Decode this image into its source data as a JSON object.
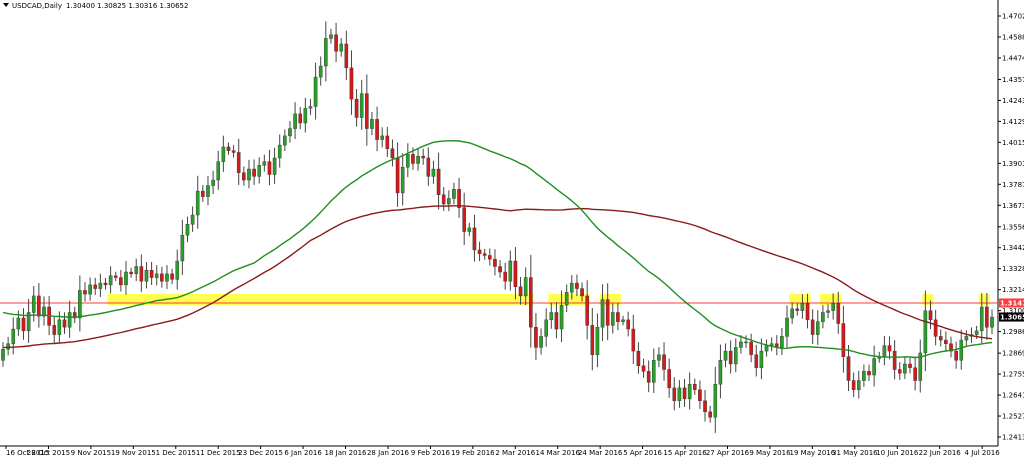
{
  "header": {
    "symbol": "USDCAD,Daily",
    "ohlc": "1.30400 1.30825 1.30316 1.30652"
  },
  "colors": {
    "up": "#2a9d2a",
    "down": "#d11a1a",
    "wick": "#444444",
    "ma_fast": "#1f8f1f",
    "ma_slow": "#8b1a1a",
    "resistance": "#ff3b3b",
    "highlight": "#ffff33",
    "tag_resistance": "#ff3b3b",
    "tag_current": "#000000",
    "axis": "#000000"
  },
  "chart_data": {
    "type": "candlestick",
    "symbol": "USDCAD",
    "timeframe": "Daily",
    "ylim": [
      1.2413,
      1.4702
    ],
    "y_ticks": [
      "1.47020",
      "1.45880",
      "1.44740",
      "1.43570",
      "1.42430",
      "1.41290",
      "1.40150",
      "1.39010",
      "1.37870",
      "1.36730",
      "1.35560",
      "1.34420",
      "1.33280",
      "1.32140",
      "1.31000",
      "1.29860",
      "1.28690",
      "1.27550",
      "1.26410",
      "1.25270",
      "1.24130"
    ],
    "x_ticks": [
      "16 Oct 2015",
      "28 Oct 2015",
      "9 Nov 2015",
      "19 Nov 2015",
      "1 Dec 2015",
      "11 Dec 2015",
      "23 Dec 2015",
      "6 Jan 2016",
      "18 Jan 2016",
      "28 Jan 2016",
      "9 Feb 2016",
      "19 Feb 2016",
      "2 Mar 2016",
      "14 Mar 2016",
      "24 Mar 2016",
      "5 Apr 2016",
      "15 Apr 2016",
      "27 Apr 2016",
      "9 May 2016",
      "19 May 2016",
      "31 May 2016",
      "10 Jun 2016",
      "22 Jun 2016",
      "4 Jul 2016"
    ],
    "resistance_level": 1.31418,
    "resistance_label": "1.31418",
    "current_price": 1.30652,
    "current_label": "1.30652",
    "closes": [
      1.289,
      1.292,
      1.3,
      1.306,
      1.299,
      1.309,
      1.318,
      1.307,
      1.312,
      1.302,
      1.297,
      1.305,
      1.301,
      1.309,
      1.306,
      1.321,
      1.319,
      1.324,
      1.322,
      1.325,
      1.324,
      1.329,
      1.328,
      1.324,
      1.331,
      1.33,
      1.334,
      1.326,
      1.332,
      1.328,
      1.33,
      1.326,
      1.33,
      1.327,
      1.337,
      1.351,
      1.357,
      1.362,
      1.375,
      1.372,
      1.378,
      1.381,
      1.391,
      1.399,
      1.397,
      1.396,
      1.385,
      1.381,
      1.387,
      1.383,
      1.389,
      1.391,
      1.384,
      1.393,
      1.4,
      1.405,
      1.409,
      1.417,
      1.412,
      1.42,
      1.421,
      1.437,
      1.443,
      1.458,
      1.46,
      1.451,
      1.455,
      1.442,
      1.425,
      1.415,
      1.428,
      1.409,
      1.414,
      1.403,
      1.405,
      1.398,
      1.393,
      1.374,
      1.388,
      1.395,
      1.39,
      1.394,
      1.393,
      1.383,
      1.387,
      1.373,
      1.368,
      1.371,
      1.376,
      1.366,
      1.353,
      1.355,
      1.343,
      1.341,
      1.34,
      1.338,
      1.334,
      1.331,
      1.326,
      1.337,
      1.323,
      1.318,
      1.328,
      1.301,
      1.29,
      1.296,
      1.305,
      1.309,
      1.3,
      1.313,
      1.32,
      1.325,
      1.322,
      1.318,
      1.302,
      1.286,
      1.301,
      1.316,
      1.302,
      1.309,
      1.304,
      1.305,
      1.3,
      1.288,
      1.28,
      1.277,
      1.271,
      1.283,
      1.286,
      1.278,
      1.268,
      1.261,
      1.268,
      1.262,
      1.27,
      1.267,
      1.261,
      1.255,
      1.252,
      1.27,
      1.283,
      1.288,
      1.281,
      1.29,
      1.293,
      1.293,
      1.286,
      1.279,
      1.288,
      1.291,
      1.292,
      1.29,
      1.296,
      1.306,
      1.311,
      1.31,
      1.314,
      1.305,
      1.297,
      1.304,
      1.309,
      1.31,
      1.314,
      1.303,
      1.285,
      1.272,
      1.267,
      1.272,
      1.277,
      1.275,
      1.284,
      1.285,
      1.291,
      1.288,
      1.278,
      1.276,
      1.281,
      1.279,
      1.272,
      1.287,
      1.31,
      1.305,
      1.296,
      1.294,
      1.292,
      1.288,
      1.283,
      1.294,
      1.296,
      1.297,
      1.299,
      1.312,
      1.301,
      1.3065
    ]
  }
}
